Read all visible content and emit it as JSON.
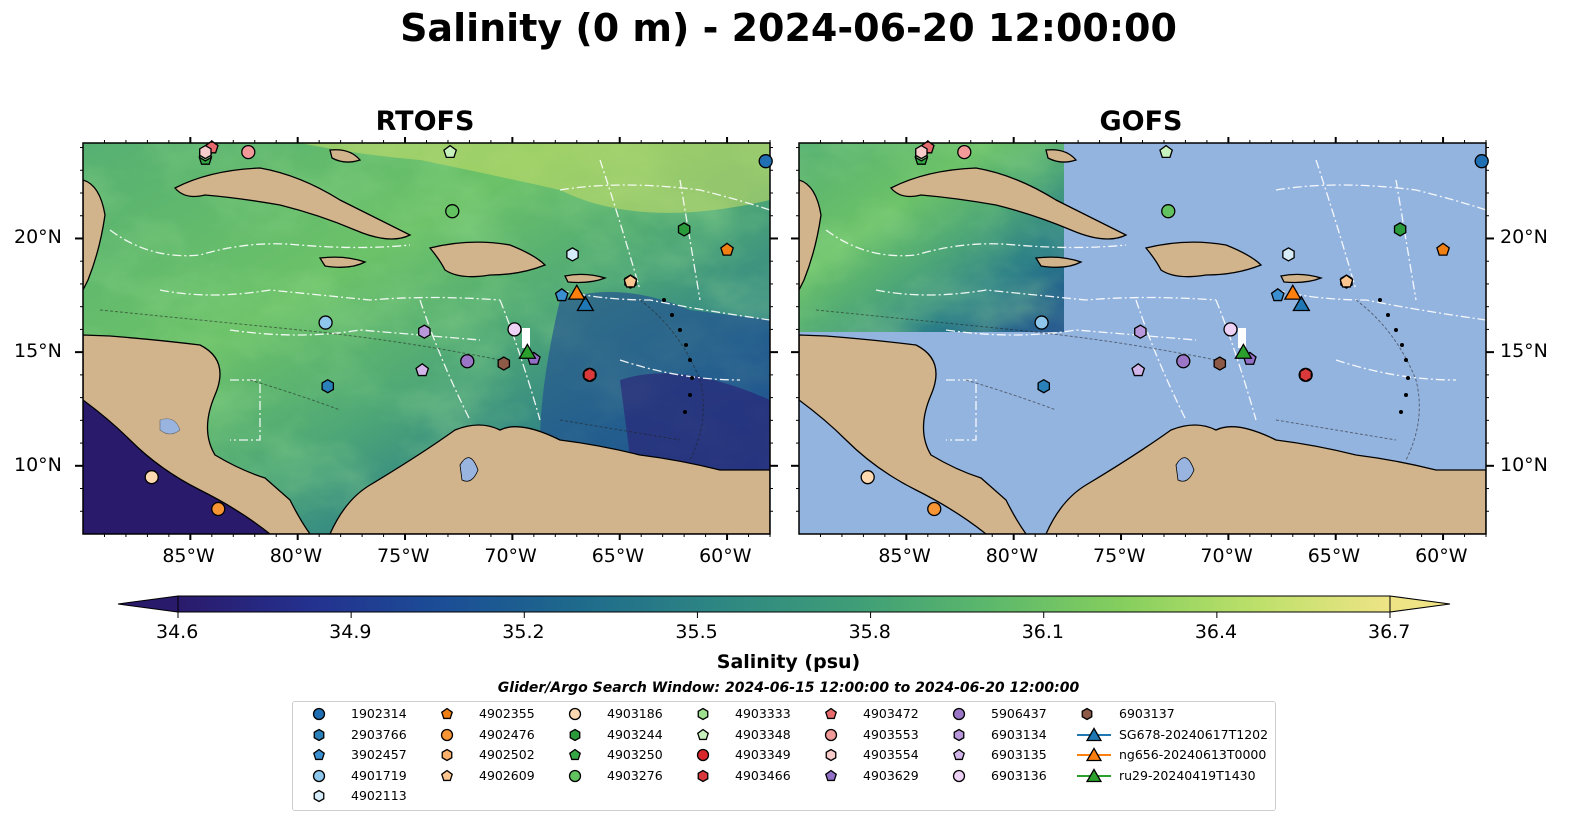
{
  "title": "Salinity (0 m) - 2024-06-20 12:00:00",
  "panels": [
    {
      "title": "RTOFS"
    },
    {
      "title": "GOFS"
    }
  ],
  "axes": {
    "lon_ticks": [
      "85°W",
      "80°W",
      "75°W",
      "70°W",
      "65°W",
      "60°W"
    ],
    "lat_ticks": [
      "20°N",
      "15°N",
      "10°N"
    ]
  },
  "colorbar": {
    "label": "Salinity (psu)",
    "ticks": [
      "34.6",
      "34.9",
      "35.2",
      "35.5",
      "35.8",
      "36.1",
      "36.4",
      "36.7"
    ],
    "min": 34.6,
    "max": 36.7,
    "colormap": [
      "#2a1a6b",
      "#24318f",
      "#1b4e96",
      "#1e6a8c",
      "#2d8583",
      "#3f9e77",
      "#5cb86b",
      "#86cf5e",
      "#bde06a",
      "#eee486"
    ],
    "extend": "both"
  },
  "search_window": "Glider/Argo Search Window: 2024-06-15 12:00:00 to 2024-06-20 12:00:00",
  "colors": {
    "land": "#d2b48c",
    "gofs_missing_ocean": "#94b4e0",
    "lakes": "#9ab4e0"
  },
  "legend": [
    {
      "label": "1902314",
      "marker": "circle",
      "color": "#1f6fb2"
    },
    {
      "label": "2903766",
      "marker": "hexagon",
      "color": "#2a80b9"
    },
    {
      "label": "3902457",
      "marker": "pentagon",
      "color": "#3a8fd0"
    },
    {
      "label": "4901719",
      "marker": "circle",
      "color": "#8ec6ec"
    },
    {
      "label": "4902113",
      "marker": "hexagon",
      "color": "#d6ecf8"
    },
    {
      "label": "4902355",
      "marker": "pentagon",
      "color": "#f07f14"
    },
    {
      "label": "4902476",
      "marker": "circle",
      "color": "#f79434"
    },
    {
      "label": "4902502",
      "marker": "hexagon",
      "color": "#fbb16b"
    },
    {
      "label": "4902609",
      "marker": "pentagon",
      "color": "#fcc690"
    },
    {
      "label": "4903186",
      "marker": "circle",
      "color": "#fdd9b2"
    },
    {
      "label": "4903244",
      "marker": "hexagon",
      "color": "#2a9a3a"
    },
    {
      "label": "4903250",
      "marker": "pentagon",
      "color": "#35a845"
    },
    {
      "label": "4903276",
      "marker": "circle",
      "color": "#62c25f"
    },
    {
      "label": "4903333",
      "marker": "hexagon",
      "color": "#9ddf8f"
    },
    {
      "label": "4903348",
      "marker": "pentagon",
      "color": "#c8f2bd"
    },
    {
      "label": "4903349",
      "marker": "circle",
      "color": "#d8262a"
    },
    {
      "label": "4903466",
      "marker": "hexagon",
      "color": "#d9393b"
    },
    {
      "label": "4903472",
      "marker": "pentagon",
      "color": "#e76a6c"
    },
    {
      "label": "4903553",
      "marker": "circle",
      "color": "#f29a9a"
    },
    {
      "label": "4903554",
      "marker": "hexagon",
      "color": "#f9cccc"
    },
    {
      "label": "4903629",
      "marker": "pentagon",
      "color": "#9270c8"
    },
    {
      "label": "5906437",
      "marker": "circle",
      "color": "#9b76c6"
    },
    {
      "label": "6903134",
      "marker": "hexagon",
      "color": "#b898da"
    },
    {
      "label": "6903135",
      "marker": "pentagon",
      "color": "#d2b6ea"
    },
    {
      "label": "6903136",
      "marker": "circle",
      "color": "#edd2f6"
    },
    {
      "label": "6903137",
      "marker": "hexagon",
      "color": "#8c5a46"
    },
    {
      "label": "SG678-20240617T1202",
      "marker": "triangle",
      "color": "#1f77b4"
    },
    {
      "label": "ng656-20240613T0000",
      "marker": "triangle",
      "color": "#ff7f0e"
    },
    {
      "label": "ru29-20240419T1430",
      "marker": "triangle",
      "color": "#2ca02c"
    }
  ],
  "observations": [
    {
      "id": "1902314",
      "lon": -58.2,
      "lat": 23.4
    },
    {
      "id": "2903766",
      "lon": -78.6,
      "lat": 13.5
    },
    {
      "id": "3902457",
      "lon": -67.7,
      "lat": 17.5
    },
    {
      "id": "4901719",
      "lon": -78.7,
      "lat": 16.3
    },
    {
      "id": "4902113",
      "lon": -67.2,
      "lat": 19.3
    },
    {
      "id": "4902355",
      "lon": -60.0,
      "lat": 19.5
    },
    {
      "id": "4902476",
      "lon": -83.7,
      "lat": 8.1
    },
    {
      "id": "4902502",
      "lon": -64.5,
      "lat": 18.1
    },
    {
      "id": "4902609",
      "lon": -64.5,
      "lat": 18.1
    },
    {
      "id": "4903186",
      "lon": -86.8,
      "lat": 9.5
    },
    {
      "id": "4903244",
      "lon": -62.0,
      "lat": 20.4
    },
    {
      "id": "4903250",
      "lon": -84.3,
      "lat": 23.5
    },
    {
      "id": "4903276",
      "lon": -72.8,
      "lat": 21.2
    },
    {
      "id": "4903333",
      "lon": -84.3,
      "lat": 23.7
    },
    {
      "id": "4903348",
      "lon": -72.9,
      "lat": 23.8
    },
    {
      "id": "4903349",
      "lon": -66.4,
      "lat": 14.0
    },
    {
      "id": "4903466",
      "lon": -66.4,
      "lat": 14.0
    },
    {
      "id": "4903472",
      "lon": -84.0,
      "lat": 24.0
    },
    {
      "id": "4903553",
      "lon": -82.3,
      "lat": 23.8
    },
    {
      "id": "4903554",
      "lon": -84.3,
      "lat": 23.8
    },
    {
      "id": "4903629",
      "lon": -69.0,
      "lat": 14.7
    },
    {
      "id": "5906437",
      "lon": -72.1,
      "lat": 14.6
    },
    {
      "id": "6903134",
      "lon": -74.1,
      "lat": 15.9
    },
    {
      "id": "6903135",
      "lon": -74.2,
      "lat": 14.2
    },
    {
      "id": "6903136",
      "lon": -69.9,
      "lat": 16.0
    },
    {
      "id": "6903137",
      "lon": -70.4,
      "lat": 14.5
    },
    {
      "id": "SG678-20240617T1202",
      "lon": -66.6,
      "lat": 17.1
    },
    {
      "id": "ng656-20240613T0000",
      "lon": -67.0,
      "lat": 17.6
    },
    {
      "id": "ru29-20240419T1430",
      "lon": -69.3,
      "lat": 15.0
    }
  ]
}
